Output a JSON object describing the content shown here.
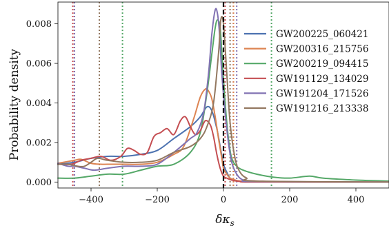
{
  "chart_data": {
    "type": "line",
    "title": "",
    "xlabel": "δκ",
    "xlabel_subscript": "s",
    "ylabel": "Probability density",
    "xlim": [
      -500,
      500
    ],
    "ylim": [
      -0.0003,
      0.0091
    ],
    "xticks": [
      -400,
      -200,
      0,
      200,
      400
    ],
    "xtick_labels": [
      "−400",
      "−200",
      "0",
      "200",
      "400"
    ],
    "yticks": [
      0.0,
      0.002,
      0.004,
      0.006,
      0.008
    ],
    "ytick_labels": [
      "0.000",
      "0.002",
      "0.004",
      "0.006",
      "0.008"
    ],
    "grid": false,
    "legend_position": "upper right",
    "reference_line": {
      "x": 0,
      "color": "#000000",
      "style": "dashed"
    },
    "series": [
      {
        "name": "GW200225_060421",
        "color": "#4c72b0",
        "x": [
          -500,
          -450,
          -400,
          -350,
          -300,
          -250,
          -200,
          -150,
          -100,
          -70,
          -50,
          -35,
          -20,
          -10,
          0,
          10,
          20,
          35,
          50,
          80,
          120,
          200,
          300,
          400,
          500
        ],
        "y": [
          0.0009,
          0.001,
          0.0012,
          0.0013,
          0.0013,
          0.0014,
          0.0016,
          0.0022,
          0.0028,
          0.0033,
          0.0038,
          0.0036,
          0.0027,
          0.0018,
          0.0009,
          0.0005,
          0.0002,
          0.0001,
          5e-05,
          3e-05,
          2e-05,
          1e-05,
          0.0,
          0.0,
          0.0
        ],
        "hdi": [
          -450,
          30
        ]
      },
      {
        "name": "GW200316_215756",
        "color": "#dd8452",
        "x": [
          -500,
          -450,
          -430,
          -400,
          -370,
          -350,
          -300,
          -250,
          -200,
          -150,
          -120,
          -90,
          -70,
          -55,
          -45,
          -35,
          -25,
          -15,
          -5,
          0,
          10,
          20,
          35,
          50,
          80,
          150,
          300,
          500
        ],
        "y": [
          0.00095,
          0.0011,
          0.00115,
          0.00095,
          0.0009,
          0.0009,
          0.0009,
          0.0009,
          0.001,
          0.0014,
          0.0018,
          0.0032,
          0.0043,
          0.0047,
          0.0046,
          0.0042,
          0.0033,
          0.0022,
          0.0012,
          0.0007,
          0.0004,
          0.0002,
          0.0001,
          5e-05,
          3e-05,
          2e-05,
          0.0,
          0.0
        ],
        "hdi": [
          -450,
          30
        ]
      },
      {
        "name": "GW200219_094415",
        "color": "#55a868",
        "x": [
          -500,
          -450,
          -400,
          -350,
          -300,
          -250,
          -200,
          -150,
          -100,
          -70,
          -50,
          -35,
          -25,
          -18,
          -10,
          -3,
          5,
          15,
          25,
          40,
          60,
          100,
          150,
          200,
          260,
          300,
          400,
          500
        ],
        "y": [
          0.0002,
          0.0002,
          0.0003,
          0.0004,
          0.0004,
          0.0006,
          0.0008,
          0.0009,
          0.0015,
          0.0025,
          0.0045,
          0.0065,
          0.0078,
          0.0082,
          0.0078,
          0.006,
          0.004,
          0.0022,
          0.0012,
          0.0008,
          0.0006,
          0.0004,
          0.00025,
          0.0002,
          0.0003,
          0.0002,
          0.0001,
          5e-05
        ],
        "hdi": [
          -305,
          145
        ]
      },
      {
        "name": "GW191129_134029",
        "color": "#c44e52",
        "x": [
          -500,
          -460,
          -430,
          -400,
          -370,
          -340,
          -310,
          -290,
          -270,
          -250,
          -230,
          -210,
          -190,
          -170,
          -150,
          -130,
          -115,
          -100,
          -85,
          -70,
          -55,
          -40,
          -30,
          -20,
          -10,
          0,
          10,
          25,
          50,
          100,
          500
        ],
        "y": [
          0.0009,
          0.0009,
          0.0011,
          0.0012,
          0.0013,
          0.0011,
          0.0013,
          0.0017,
          0.0016,
          0.0014,
          0.0015,
          0.0023,
          0.0025,
          0.0027,
          0.0024,
          0.0031,
          0.0033,
          0.0028,
          0.0024,
          0.0026,
          0.0031,
          0.0029,
          0.0023,
          0.0014,
          0.0007,
          0.0003,
          0.0002,
          0.0001,
          3e-05,
          0.0,
          0.0
        ],
        "hdi": [
          -455,
          5
        ]
      },
      {
        "name": "GW191204_171526",
        "color": "#8172b3",
        "x": [
          -500,
          -470,
          -450,
          -420,
          -390,
          -350,
          -300,
          -250,
          -200,
          -150,
          -100,
          -80,
          -60,
          -45,
          -35,
          -25,
          -18,
          -12,
          -5,
          5,
          15,
          25,
          40,
          60,
          100,
          500
        ],
        "y": [
          0.00095,
          0.0008,
          0.0008,
          0.0007,
          0.0006,
          0.0007,
          0.0008,
          0.0008,
          0.0009,
          0.0015,
          0.0022,
          0.0025,
          0.0035,
          0.0055,
          0.0075,
          0.0087,
          0.0085,
          0.0075,
          0.0055,
          0.0035,
          0.002,
          0.001,
          0.0004,
          0.0001,
          3e-05,
          0.0
        ],
        "hdi": [
          -450,
          40
        ]
      },
      {
        "name": "GW191216_213338",
        "color": "#937860",
        "x": [
          -500,
          -470,
          -440,
          -420,
          -400,
          -380,
          -350,
          -300,
          -250,
          -200,
          -150,
          -100,
          -70,
          -50,
          -30,
          -15,
          -8,
          0,
          10,
          20,
          35,
          50,
          70,
          100,
          500
        ],
        "y": [
          0.0009,
          0.0009,
          0.0008,
          0.0008,
          0.001,
          0.0012,
          0.0011,
          0.001,
          0.001,
          0.0011,
          0.0015,
          0.0018,
          0.0022,
          0.0028,
          0.004,
          0.0065,
          0.0082,
          0.008,
          0.0055,
          0.003,
          0.0012,
          0.0005,
          0.0002,
          5e-05,
          0.0
        ],
        "hdi": [
          -375,
          20
        ]
      }
    ]
  }
}
